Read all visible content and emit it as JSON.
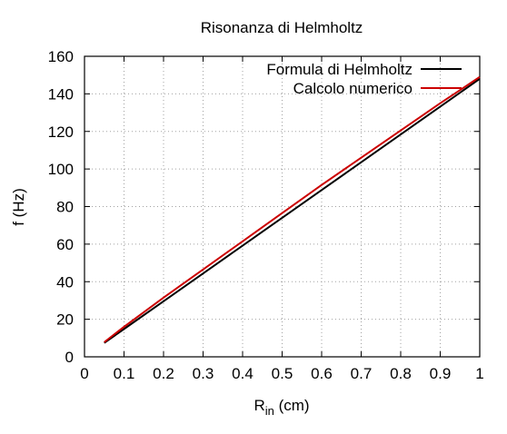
{
  "chart_data": {
    "type": "line",
    "title": "Risonanza di Helmholtz",
    "xlabel": "R",
    "xlabel_subscript": "in",
    "xlabel_unit": " (cm)",
    "ylabel": "f (Hz)",
    "xlim": [
      0,
      1
    ],
    "ylim": [
      0,
      160
    ],
    "xticks": [
      "0",
      "0.1",
      "0.2",
      "0.3",
      "0.4",
      "0.5",
      "0.6",
      "0.7",
      "0.8",
      "0.9",
      "1"
    ],
    "yticks": [
      "0",
      "20",
      "40",
      "60",
      "80",
      "100",
      "120",
      "140",
      "160"
    ],
    "grid": true,
    "legend_position": "top-right",
    "series": [
      {
        "name": "Formula di Helmholtz",
        "color": "#000000",
        "x": [
          0.05,
          0.1,
          0.2,
          0.3,
          0.4,
          0.5,
          0.6,
          0.7,
          0.8,
          0.9,
          1.0
        ],
        "y": [
          7.4,
          14.8,
          29.6,
          44.4,
          59.2,
          74.0,
          88.8,
          103.6,
          118.4,
          133.2,
          148.0
        ]
      },
      {
        "name": "Calcolo numerico",
        "color": "#cc0000",
        "x": [
          0.05,
          0.1,
          0.2,
          0.3,
          0.4,
          0.5,
          0.6,
          0.7,
          0.8,
          0.9,
          1.0
        ],
        "y": [
          7.8,
          16.0,
          31.5,
          46.5,
          61.5,
          76.5,
          91.5,
          106.0,
          120.5,
          135.0,
          149.0
        ]
      }
    ]
  }
}
